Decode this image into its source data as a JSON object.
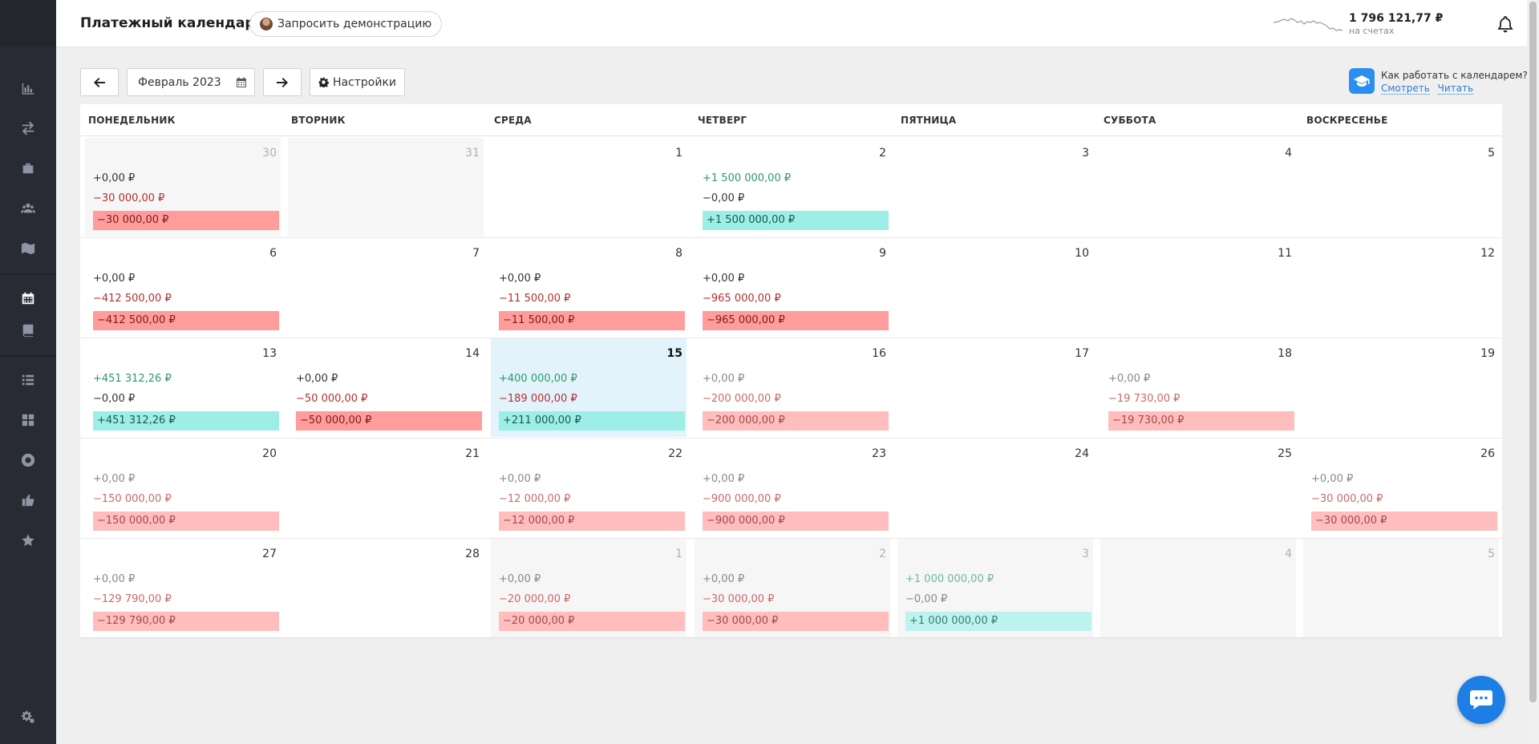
{
  "header": {
    "title": "Платежный календарь",
    "demo_label": "Запросить демонстрацию",
    "balance": "1 796 121,77 ₽",
    "balance_sub": "на счетах"
  },
  "toolbar": {
    "month": "Февраль 2023",
    "settings_label": "Настройки"
  },
  "help": {
    "question": "Как работать с календарем?",
    "watch": "Смотреть",
    "read": "Читать"
  },
  "weekdays": [
    "ПОНЕДЕЛЬНИК",
    "ВТОРНИК",
    "СРЕДА",
    "ЧЕТВЕРГ",
    "ПЯТНИЦА",
    "СУББОТА",
    "ВОСКРЕСЕНЬЕ"
  ],
  "weeks": [
    [
      {
        "num": "30",
        "gray": true,
        "inc": "+0,00 ₽",
        "exp": "−30 000,00 ₽",
        "tot": "−30 000,00 ₽",
        "tot_type": "neg"
      },
      {
        "num": "31",
        "gray": true
      },
      {
        "num": "1"
      },
      {
        "num": "2",
        "inc": "+1 500 000,00 ₽",
        "exp": "−0,00 ₽",
        "tot": "+1 500 000,00 ₽",
        "tot_type": "pos"
      },
      {
        "num": "3"
      },
      {
        "num": "4"
      },
      {
        "num": "5"
      }
    ],
    [
      {
        "num": "6",
        "inc": "+0,00 ₽",
        "exp": "−412 500,00 ₽",
        "tot": "−412 500,00 ₽",
        "tot_type": "neg"
      },
      {
        "num": "7"
      },
      {
        "num": "8",
        "inc": "+0,00 ₽",
        "exp": "−11 500,00 ₽",
        "tot": "−11 500,00 ₽",
        "tot_type": "neg"
      },
      {
        "num": "9",
        "inc": "+0,00 ₽",
        "exp": "−965 000,00 ₽",
        "tot": "−965 000,00 ₽",
        "tot_type": "neg"
      },
      {
        "num": "10"
      },
      {
        "num": "11"
      },
      {
        "num": "12"
      }
    ],
    [
      {
        "num": "13",
        "inc": "+451 312,26 ₽",
        "exp": "−0,00 ₽",
        "tot": "+451 312,26 ₽",
        "tot_type": "pos"
      },
      {
        "num": "14",
        "inc": "+0,00 ₽",
        "exp": "−50 000,00 ₽",
        "tot": "−50 000,00 ₽",
        "tot_type": "neg"
      },
      {
        "num": "15",
        "today": true,
        "inc": "+400 000,00 ₽",
        "exp": "−189 000,00 ₽",
        "tot": "+211 000,00 ₽",
        "tot_type": "pos"
      },
      {
        "num": "16",
        "faded": true,
        "inc": "+0,00 ₽",
        "exp": "−200 000,00 ₽",
        "tot": "−200 000,00 ₽",
        "tot_type": "neg"
      },
      {
        "num": "17"
      },
      {
        "num": "18",
        "faded": true,
        "inc": "+0,00 ₽",
        "exp": "−19 730,00 ₽",
        "tot": "−19 730,00 ₽",
        "tot_type": "neg"
      },
      {
        "num": "19"
      }
    ],
    [
      {
        "num": "20",
        "faded": true,
        "inc": "+0,00 ₽",
        "exp": "−150 000,00 ₽",
        "tot": "−150 000,00 ₽",
        "tot_type": "neg"
      },
      {
        "num": "21"
      },
      {
        "num": "22",
        "faded": true,
        "inc": "+0,00 ₽",
        "exp": "−12 000,00 ₽",
        "tot": "−12 000,00 ₽",
        "tot_type": "neg"
      },
      {
        "num": "23",
        "faded": true,
        "inc": "+0,00 ₽",
        "exp": "−900 000,00 ₽",
        "tot": "−900 000,00 ₽",
        "tot_type": "neg"
      },
      {
        "num": "24"
      },
      {
        "num": "25"
      },
      {
        "num": "26",
        "faded": true,
        "inc": "+0,00 ₽",
        "exp": "−30 000,00 ₽",
        "tot": "−30 000,00 ₽",
        "tot_type": "neg"
      }
    ],
    [
      {
        "num": "27",
        "faded": true,
        "inc": "+0,00 ₽",
        "exp": "−129 790,00 ₽",
        "tot": "−129 790,00 ₽",
        "tot_type": "neg"
      },
      {
        "num": "28"
      },
      {
        "num": "1",
        "gray": true,
        "faded": true,
        "inc": "+0,00 ₽",
        "exp": "−20 000,00 ₽",
        "tot": "−20 000,00 ₽",
        "tot_type": "neg"
      },
      {
        "num": "2",
        "gray": true,
        "faded": true,
        "inc": "+0,00 ₽",
        "exp": "−30 000,00 ₽",
        "tot": "−30 000,00 ₽",
        "tot_type": "neg"
      },
      {
        "num": "3",
        "gray": true,
        "faded": true,
        "inc": "+1 000 000,00 ₽",
        "exp": "−0,00 ₽",
        "tot": "+1 000 000,00 ₽",
        "tot_type": "pos"
      },
      {
        "num": "4",
        "gray": true
      },
      {
        "num": "5",
        "gray": true
      }
    ]
  ],
  "sidebar": {
    "icons": [
      "bar-chart-icon",
      "transfer-icon",
      "briefcase-icon",
      "users-icon",
      "map-icon",
      "calendar-icon",
      "book-icon",
      "list-icon",
      "dashboard-icon",
      "lifebuoy-icon",
      "thumbs-up-icon",
      "star-icon",
      "settings-icon"
    ]
  },
  "colors": {
    "sidebar": "#282b33",
    "accent": "#1d7fe6",
    "negative_bg": "#ff9c9c",
    "positive_bg": "#9deee6",
    "today_bg": "#e2f3fc"
  }
}
